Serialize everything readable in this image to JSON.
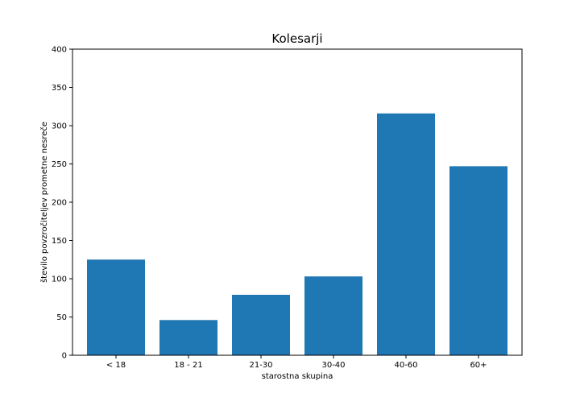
{
  "chart_data": {
    "type": "bar",
    "title": "Kolesarji",
    "xlabel": "starostna skupina",
    "ylabel": "število povzročiteljev prometne nesreče",
    "categories": [
      "< 18",
      "18 - 21",
      "21-30",
      "30-40",
      "40-60",
      "60+"
    ],
    "values": [
      125,
      46,
      79,
      103,
      316,
      247
    ],
    "ylim": [
      0,
      400
    ],
    "yticks": [
      0,
      50,
      100,
      150,
      200,
      250,
      300,
      350,
      400
    ],
    "bar_color": "#1f77b4",
    "grid": false,
    "legend": false
  }
}
